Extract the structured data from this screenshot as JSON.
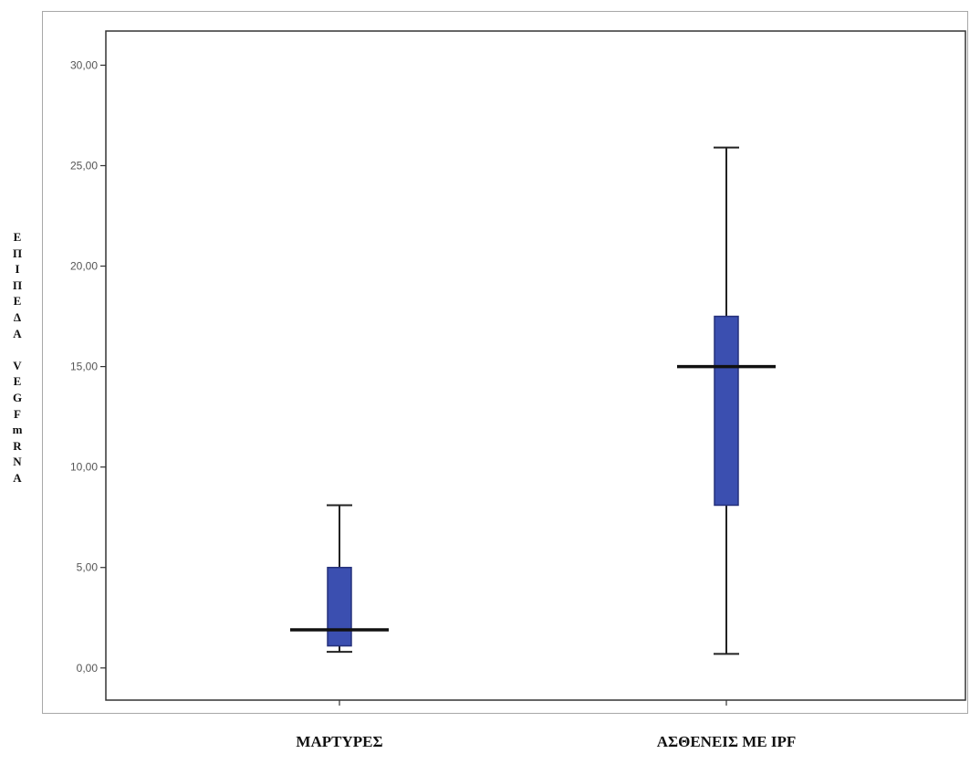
{
  "chart_data": {
    "type": "boxplot",
    "ylabel": "ΕΠΙΠΕΔΑ VEGF mRNA",
    "ylabel_lines": [
      "Ε",
      "Π",
      "Ι",
      "Π",
      "Ε",
      "Δ",
      "Α",
      "",
      "V",
      "E",
      "G",
      "F",
      "m",
      "R",
      "N",
      "A"
    ],
    "ylim": [
      -1.6,
      31.7
    ],
    "yticks": [
      "0,00",
      "5,00",
      "10,00",
      "15,00",
      "20,00",
      "25,00",
      "30,00"
    ],
    "ytick_values": [
      0,
      5,
      10,
      15,
      20,
      25,
      30
    ],
    "grid": false,
    "categories": [
      "ΜΑΡΤΥΡΕΣ",
      "ΑΣΘΕΝΕΙΣ ΜΕ IPF"
    ],
    "boxes": [
      {
        "category": "ΜΑΡΤΥΡΕΣ",
        "min": 0.8,
        "q1": 1.1,
        "median": 1.9,
        "q3": 5.0,
        "max": 8.1
      },
      {
        "category": "ΑΣΘΕΝΕΙΣ ΜΕ IPF",
        "min": 0.7,
        "q1": 8.1,
        "median": 15.0,
        "q3": 17.5,
        "max": 25.9
      }
    ],
    "colors": {
      "box_fill": "#3b4fb0",
      "box_edge": "#25307a",
      "whisker": "#222222",
      "median": "#111111"
    }
  }
}
